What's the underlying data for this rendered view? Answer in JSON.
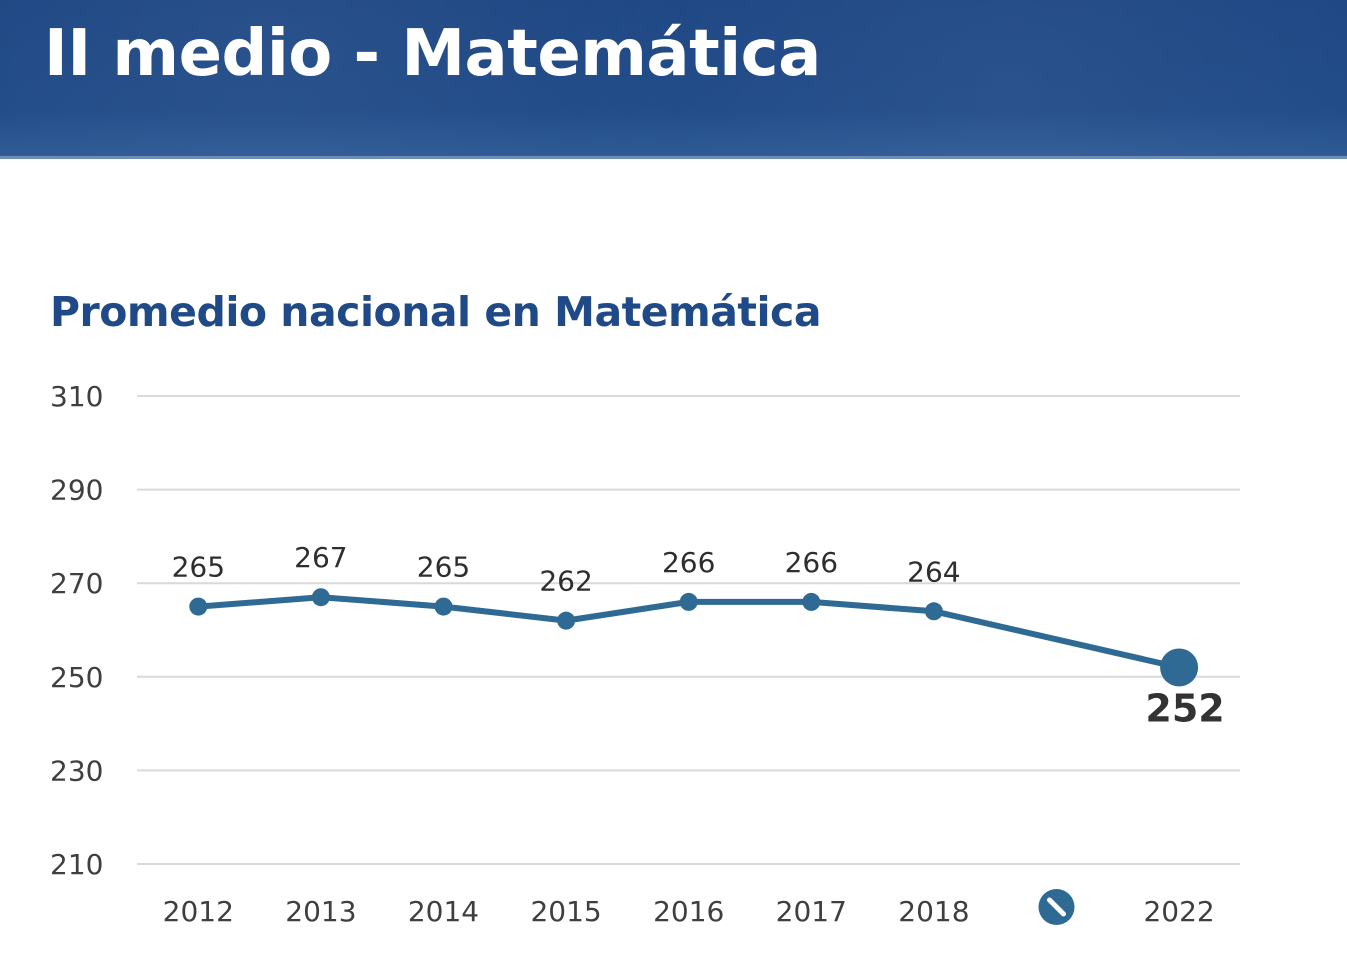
{
  "header": {
    "title": "II medio - Matemática"
  },
  "chart_data": {
    "type": "line",
    "title": "Promedio nacional en Matemática",
    "xlabel": "",
    "ylabel": "",
    "categories": [
      "2012",
      "2013",
      "2014",
      "2015",
      "2016",
      "2017",
      "2018",
      "",
      "2022"
    ],
    "values": [
      265,
      267,
      265,
      262,
      266,
      266,
      264,
      null,
      252
    ],
    "data_labels": [
      "265",
      "267",
      "265",
      "262",
      "266",
      "266",
      "264",
      "",
      "252"
    ],
    "highlight_index": 8,
    "gap_marker_icon": "no-data-icon",
    "ylim": [
      210,
      310
    ],
    "yticks": [
      210,
      230,
      250,
      270,
      290,
      310
    ],
    "ytick_labels": [
      "210",
      "230",
      "250",
      "270",
      "290",
      "310"
    ],
    "grid": true,
    "legend": "none",
    "colors": {
      "line": "#2e6a94",
      "grid": "#d9d9d9",
      "title": "#1f4a87"
    }
  }
}
